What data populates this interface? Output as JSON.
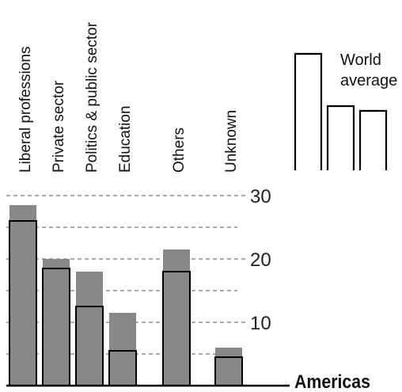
{
  "chart_data": {
    "type": "bar",
    "title": "",
    "xlabel": "",
    "ylabel": "",
    "region_label": "Americas",
    "ylim": [
      0,
      32
    ],
    "yticks": [
      10,
      20,
      30
    ],
    "grid": "dashed horizontal lines at 5-unit steps",
    "categories": [
      "Liberal professions",
      "Private sector",
      "Politics & public sector",
      "Education",
      "Others",
      "Unknown"
    ],
    "series": [
      {
        "name": "",
        "values": [
          26,
          18.5,
          12.5,
          5.5,
          18,
          4.5
        ]
      },
      {
        "name": "World average",
        "values": [
          28.5,
          20,
          18,
          11.5,
          21.5,
          6
        ]
      }
    ],
    "legend": {
      "label": "World average",
      "position": "top-right"
    },
    "colors": {
      "bar": "#888888",
      "outline": "#000000",
      "grid": "#777777"
    }
  }
}
